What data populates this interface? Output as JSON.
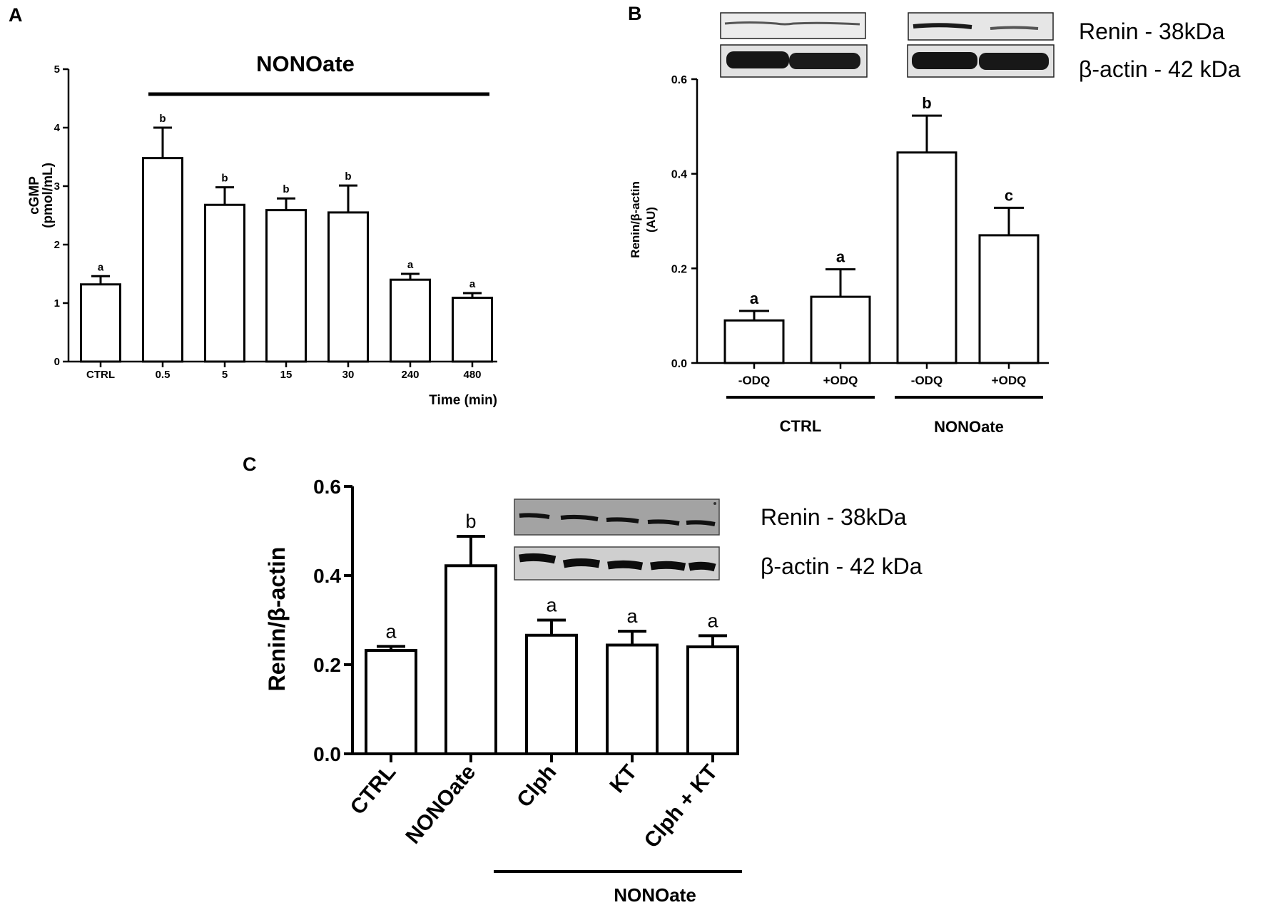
{
  "panels": {
    "A": "A",
    "B": "B",
    "C": "C"
  },
  "chart_data": [
    {
      "id": "A",
      "type": "bar",
      "categories": [
        "CTRL",
        "0.5",
        "5",
        "15",
        "30",
        "240",
        "480"
      ],
      "values": [
        1.32,
        3.48,
        2.68,
        2.59,
        2.55,
        1.4,
        1.09
      ],
      "errors": [
        0.14,
        0.52,
        0.3,
        0.2,
        0.46,
        0.1,
        0.08
      ],
      "significance": [
        "a",
        "b",
        "b",
        "b",
        "b",
        "a",
        "a"
      ],
      "ylabel_lines": [
        "cGMP",
        "(pmol/mL)"
      ],
      "xlabel": "Time (min)",
      "ylim": [
        0,
        5
      ],
      "yticks": [
        "0",
        "1",
        "2",
        "3",
        "4",
        "5"
      ],
      "group_label": "NONOate",
      "grid": false
    },
    {
      "id": "B",
      "type": "bar",
      "categories": [
        "-ODQ",
        "+ODQ",
        "-ODQ",
        "+ODQ"
      ],
      "values": [
        0.09,
        0.14,
        0.445,
        0.27
      ],
      "errors": [
        0.02,
        0.058,
        0.078,
        0.058
      ],
      "significance": [
        "a",
        "a",
        "b",
        "c"
      ],
      "ylabel_lines": [
        "Renin/β-actin",
        "(AU)"
      ],
      "ylim": [
        0,
        0.6
      ],
      "yticks": [
        "0.0",
        "0.2",
        "0.4",
        "0.6"
      ],
      "groups": [
        "CTRL",
        "NONOate"
      ],
      "blot_labels": [
        "Renin - 38kDa",
        "β-actin - 42 kDa"
      ],
      "grid": false
    },
    {
      "id": "C",
      "type": "bar",
      "categories": [
        "CTRL",
        "NONOate",
        "Clph",
        "KT",
        "Clph + KT"
      ],
      "values": [
        0.232,
        0.422,
        0.266,
        0.244,
        0.24
      ],
      "errors": [
        0.009,
        0.066,
        0.034,
        0.031,
        0.025
      ],
      "significance": [
        "a",
        "b",
        "a",
        "a",
        "a"
      ],
      "ylabel": "Renin/β-actin",
      "ylim": [
        0,
        0.6
      ],
      "yticks": [
        "0.0",
        "0.2",
        "0.4",
        "0.6"
      ],
      "group_label": "NONOate",
      "blot_labels": [
        "Renin - 38kDa",
        "β-actin - 42 kDa"
      ],
      "grid": false
    }
  ]
}
